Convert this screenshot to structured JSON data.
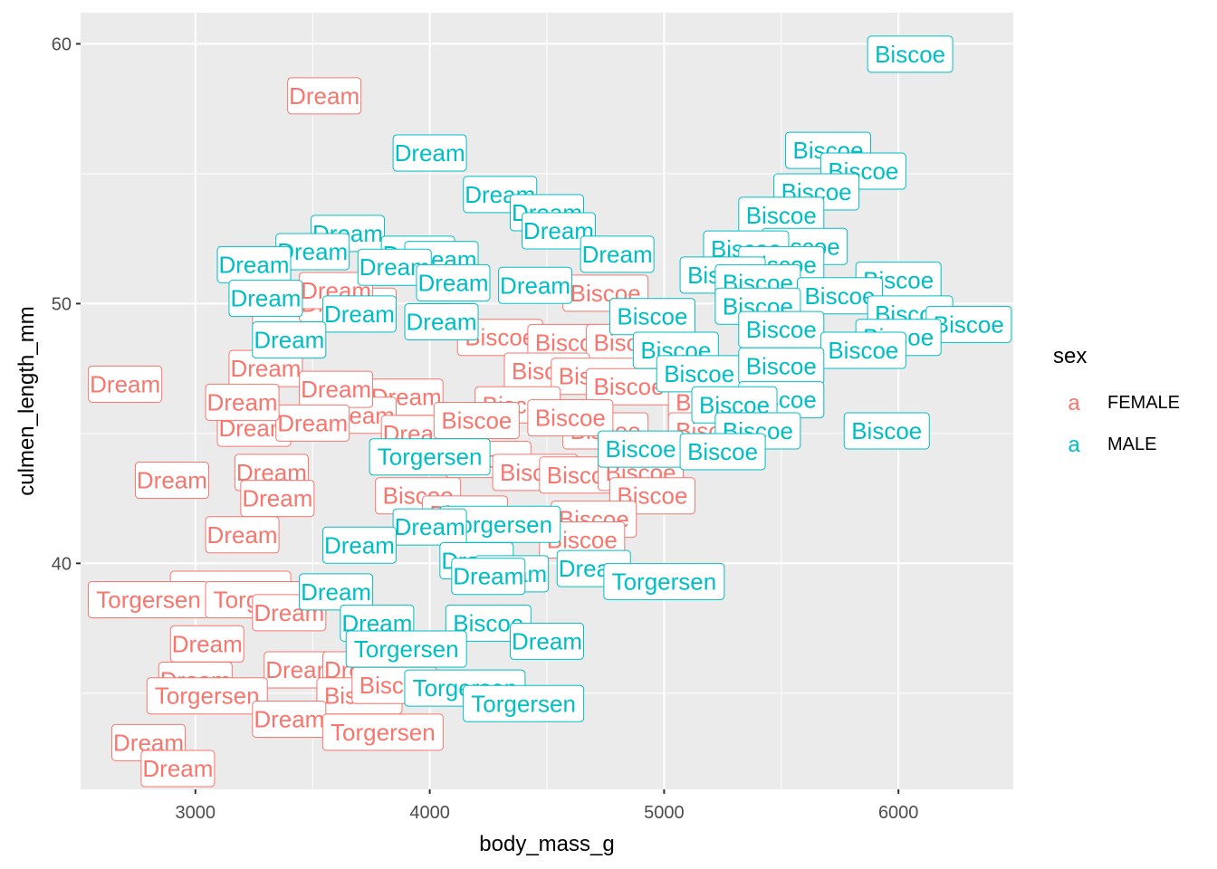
{
  "chart_data": {
    "type": "scatter",
    "geom": "label",
    "title": "",
    "xlabel": "body_mass_g",
    "ylabel": "culmen_length_mm",
    "xlim": [
      2510,
      6490
    ],
    "ylim": [
      31.3,
      61.2
    ],
    "x_ticks": [
      3000,
      4000,
      5000,
      6000
    ],
    "y_ticks": [
      40,
      50,
      60
    ],
    "grid": true,
    "panel_background": "#ebebeb",
    "legend": {
      "title": "sex",
      "position": "right",
      "key_glyph": "a",
      "entries": [
        {
          "label": "FEMALE",
          "color": "#f8766d"
        },
        {
          "label": "MALE",
          "color": "#00bfc4"
        }
      ]
    },
    "series": [
      {
        "name": "FEMALE",
        "color": "#f8766d",
        "points": [
          {
            "x": 3550,
            "y": 58.0,
            "label": "Dream"
          },
          {
            "x": 2700,
            "y": 46.9,
            "label": "Dream"
          },
          {
            "x": 3700,
            "y": 49.9,
            "label": "Dream"
          },
          {
            "x": 3400,
            "y": 49.8,
            "label": "Dream"
          },
          {
            "x": 3600,
            "y": 50.0,
            "label": "Dream"
          },
          {
            "x": 3600,
            "y": 50.5,
            "label": "Dream"
          },
          {
            "x": 3300,
            "y": 47.5,
            "label": "Dream"
          },
          {
            "x": 3900,
            "y": 46.4,
            "label": "Dream"
          },
          {
            "x": 3250,
            "y": 45.2,
            "label": "Dream"
          },
          {
            "x": 3700,
            "y": 45.7,
            "label": "Dream"
          },
          {
            "x": 3600,
            "y": 46.7,
            "label": "Dream"
          },
          {
            "x": 3500,
            "y": 45.4,
            "label": "Dream"
          },
          {
            "x": 3200,
            "y": 46.2,
            "label": "Dream"
          },
          {
            "x": 3950,
            "y": 45.0,
            "label": "Dream"
          },
          {
            "x": 2900,
            "y": 43.2,
            "label": "Dream"
          },
          {
            "x": 3325,
            "y": 43.5,
            "label": "Dream"
          },
          {
            "x": 3350,
            "y": 42.5,
            "label": "Dream"
          },
          {
            "x": 3200,
            "y": 41.1,
            "label": "Dream"
          },
          {
            "x": 3150,
            "y": 39.0,
            "label": "Torgersen"
          },
          {
            "x": 2800,
            "y": 38.6,
            "label": "Torgersen"
          },
          {
            "x": 3300,
            "y": 38.6,
            "label": "Torgersen"
          },
          {
            "x": 3400,
            "y": 38.1,
            "label": "Dream"
          },
          {
            "x": 3050,
            "y": 36.9,
            "label": "Dream"
          },
          {
            "x": 3450,
            "y": 35.9,
            "label": "Dream"
          },
          {
            "x": 3700,
            "y": 35.9,
            "label": "Dream"
          },
          {
            "x": 3000,
            "y": 35.5,
            "label": "Dream"
          },
          {
            "x": 3050,
            "y": 34.9,
            "label": "Torgersen"
          },
          {
            "x": 3700,
            "y": 34.9,
            "label": "Biscoe"
          },
          {
            "x": 3400,
            "y": 34.0,
            "label": "Dream"
          },
          {
            "x": 3800,
            "y": 33.5,
            "label": "Torgersen"
          },
          {
            "x": 2800,
            "y": 33.1,
            "label": "Dream"
          },
          {
            "x": 2925,
            "y": 32.1,
            "label": "Dream"
          },
          {
            "x": 4300,
            "y": 48.7,
            "label": "Biscoe"
          },
          {
            "x": 4600,
            "y": 48.5,
            "label": "Biscoe"
          },
          {
            "x": 4850,
            "y": 48.5,
            "label": "Biscoe"
          },
          {
            "x": 4500,
            "y": 47.4,
            "label": "Biscoe"
          },
          {
            "x": 4700,
            "y": 47.2,
            "label": "Biscoe"
          },
          {
            "x": 4750,
            "y": 50.4,
            "label": "Biscoe"
          },
          {
            "x": 4850,
            "y": 46.8,
            "label": "Biscoe"
          },
          {
            "x": 4375,
            "y": 46.1,
            "label": "Biscoe"
          },
          {
            "x": 4200,
            "y": 45.5,
            "label": "Biscoe"
          },
          {
            "x": 4750,
            "y": 45.1,
            "label": "Biscoe"
          },
          {
            "x": 4600,
            "y": 45.6,
            "label": "Biscoe"
          },
          {
            "x": 5200,
            "y": 46.2,
            "label": "Biscoe"
          },
          {
            "x": 5200,
            "y": 45.1,
            "label": "Biscoe"
          },
          {
            "x": 4250,
            "y": 44.0,
            "label": "Biscoe"
          },
          {
            "x": 4450,
            "y": 43.5,
            "label": "Biscoe"
          },
          {
            "x": 4650,
            "y": 43.4,
            "label": "Biscoe"
          },
          {
            "x": 4900,
            "y": 43.5,
            "label": "Biscoe"
          },
          {
            "x": 4950,
            "y": 42.6,
            "label": "Biscoe"
          },
          {
            "x": 3950,
            "y": 42.6,
            "label": "Biscoe"
          },
          {
            "x": 4150,
            "y": 41.9,
            "label": "Biscoe"
          },
          {
            "x": 4700,
            "y": 41.7,
            "label": "Biscoe"
          },
          {
            "x": 4650,
            "y": 40.9,
            "label": "Biscoe"
          },
          {
            "x": 3850,
            "y": 35.3,
            "label": "Biscoe"
          }
        ]
      },
      {
        "name": "MALE",
        "color": "#00bfc4",
        "points": [
          {
            "x": 6050,
            "y": 59.6,
            "label": "Biscoe"
          },
          {
            "x": 4000,
            "y": 55.8,
            "label": "Dream"
          },
          {
            "x": 4300,
            "y": 54.2,
            "label": "Dream"
          },
          {
            "x": 4500,
            "y": 53.5,
            "label": "Dream"
          },
          {
            "x": 4550,
            "y": 52.8,
            "label": "Dream"
          },
          {
            "x": 3650,
            "y": 52.7,
            "label": "Dream"
          },
          {
            "x": 3500,
            "y": 52.0,
            "label": "Dream"
          },
          {
            "x": 3950,
            "y": 51.9,
            "label": "Dream"
          },
          {
            "x": 4050,
            "y": 51.7,
            "label": "Dream"
          },
          {
            "x": 4800,
            "y": 51.9,
            "label": "Dream"
          },
          {
            "x": 3250,
            "y": 51.5,
            "label": "Dream"
          },
          {
            "x": 3850,
            "y": 51.4,
            "label": "Dream"
          },
          {
            "x": 4100,
            "y": 50.8,
            "label": "Dream"
          },
          {
            "x": 4450,
            "y": 50.7,
            "label": "Dream"
          },
          {
            "x": 3300,
            "y": 50.2,
            "label": "Dream"
          },
          {
            "x": 3700,
            "y": 49.6,
            "label": "Dream"
          },
          {
            "x": 4050,
            "y": 49.3,
            "label": "Dream"
          },
          {
            "x": 3400,
            "y": 48.6,
            "label": "Dream"
          },
          {
            "x": 5700,
            "y": 55.9,
            "label": "Biscoe"
          },
          {
            "x": 5850,
            "y": 55.1,
            "label": "Biscoe"
          },
          {
            "x": 5650,
            "y": 54.3,
            "label": "Biscoe"
          },
          {
            "x": 5500,
            "y": 53.4,
            "label": "Biscoe"
          },
          {
            "x": 5600,
            "y": 52.2,
            "label": "Biscoe"
          },
          {
            "x": 5350,
            "y": 52.1,
            "label": "Biscoe"
          },
          {
            "x": 5500,
            "y": 51.5,
            "label": "Biscoe"
          },
          {
            "x": 5250,
            "y": 51.1,
            "label": "Biscoe"
          },
          {
            "x": 5400,
            "y": 50.8,
            "label": "Biscoe"
          },
          {
            "x": 6000,
            "y": 50.9,
            "label": "Biscoe"
          },
          {
            "x": 5750,
            "y": 50.3,
            "label": "Biscoe"
          },
          {
            "x": 5400,
            "y": 49.9,
            "label": "Biscoe"
          },
          {
            "x": 6050,
            "y": 49.6,
            "label": "Biscoe"
          },
          {
            "x": 5500,
            "y": 49.0,
            "label": "Biscoe"
          },
          {
            "x": 6300,
            "y": 49.2,
            "label": "Biscoe"
          },
          {
            "x": 6000,
            "y": 48.7,
            "label": "Biscoe"
          },
          {
            "x": 5850,
            "y": 48.2,
            "label": "Biscoe"
          },
          {
            "x": 4950,
            "y": 49.5,
            "label": "Biscoe"
          },
          {
            "x": 5050,
            "y": 48.2,
            "label": "Biscoe"
          },
          {
            "x": 5150,
            "y": 47.3,
            "label": "Biscoe"
          },
          {
            "x": 5500,
            "y": 47.6,
            "label": "Biscoe"
          },
          {
            "x": 5500,
            "y": 46.3,
            "label": "Biscoe"
          },
          {
            "x": 5300,
            "y": 46.1,
            "label": "Biscoe"
          },
          {
            "x": 5400,
            "y": 45.1,
            "label": "Biscoe"
          },
          {
            "x": 5950,
            "y": 45.1,
            "label": "Biscoe"
          },
          {
            "x": 4900,
            "y": 44.4,
            "label": "Biscoe"
          },
          {
            "x": 5250,
            "y": 44.3,
            "label": "Biscoe"
          },
          {
            "x": 4000,
            "y": 44.1,
            "label": "Torgersen"
          },
          {
            "x": 4300,
            "y": 41.5,
            "label": "Torgersen"
          },
          {
            "x": 4000,
            "y": 41.4,
            "label": "Dream"
          },
          {
            "x": 3700,
            "y": 40.7,
            "label": "Dream"
          },
          {
            "x": 4200,
            "y": 40.1,
            "label": "Dream"
          },
          {
            "x": 4350,
            "y": 39.6,
            "label": "Dream"
          },
          {
            "x": 4700,
            "y": 39.8,
            "label": "Dream"
          },
          {
            "x": 4250,
            "y": 39.5,
            "label": "Dream"
          },
          {
            "x": 5000,
            "y": 39.3,
            "label": "Torgersen"
          },
          {
            "x": 3600,
            "y": 38.9,
            "label": "Dream"
          },
          {
            "x": 4250,
            "y": 37.7,
            "label": "Biscoe"
          },
          {
            "x": 4500,
            "y": 37.0,
            "label": "Dream"
          },
          {
            "x": 3775,
            "y": 37.7,
            "label": "Dream"
          },
          {
            "x": 3900,
            "y": 36.7,
            "label": "Torgersen"
          },
          {
            "x": 4150,
            "y": 35.2,
            "label": "Torgersen"
          },
          {
            "x": 4400,
            "y": 34.6,
            "label": "Torgersen"
          }
        ]
      }
    ]
  }
}
